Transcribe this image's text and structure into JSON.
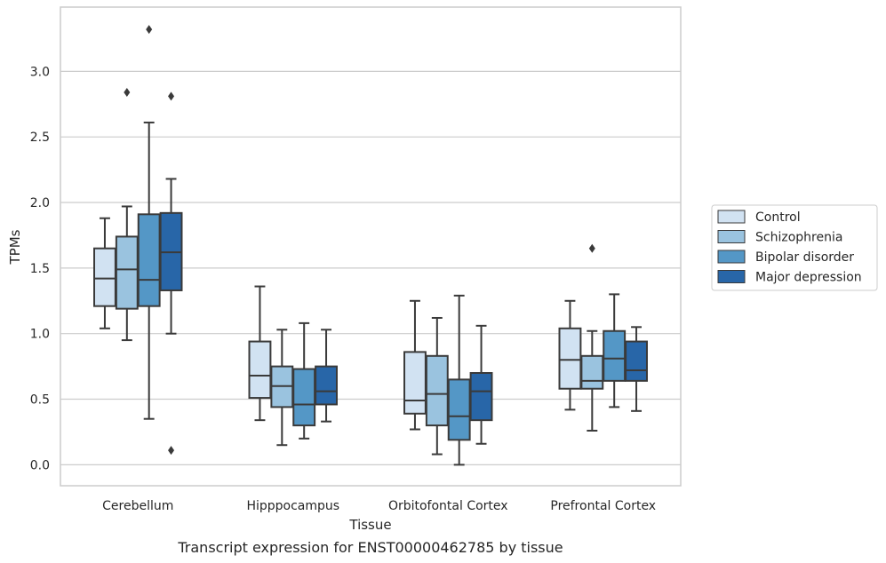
{
  "chart_data": {
    "type": "boxplot",
    "caption": "Transcript expression for ENST00000462785 by tissue",
    "xlabel": "Tissue",
    "ylabel": "TPMs",
    "ylim": [
      -0.16,
      3.49
    ],
    "yticks": [
      0.0,
      0.5,
      1.0,
      1.5,
      2.0,
      2.5,
      3.0
    ],
    "ytick_labels": [
      "0.0",
      "0.5",
      "1.0",
      "1.5",
      "2.0",
      "2.5",
      "3.0"
    ],
    "grid": "horizontal",
    "legend_position": "right",
    "categories": [
      "Cerebellum",
      "Hipppocampus",
      "Orbitofontal Cortex",
      "Prefrontal Cortex"
    ],
    "series": [
      {
        "name": "Control",
        "color": "#d1e2f2",
        "boxes": [
          {
            "whislo": 1.04,
            "q1": 1.21,
            "med": 1.42,
            "q3": 1.65,
            "whishi": 1.88,
            "fliers": []
          },
          {
            "whislo": 0.34,
            "q1": 0.51,
            "med": 0.68,
            "q3": 0.94,
            "whishi": 1.36,
            "fliers": []
          },
          {
            "whislo": 0.27,
            "q1": 0.39,
            "med": 0.49,
            "q3": 0.86,
            "whishi": 1.25,
            "fliers": []
          },
          {
            "whislo": 0.42,
            "q1": 0.58,
            "med": 0.8,
            "q3": 1.04,
            "whishi": 1.25,
            "fliers": []
          }
        ]
      },
      {
        "name": "Schizophrenia",
        "color": "#9ac3df",
        "boxes": [
          {
            "whislo": 0.95,
            "q1": 1.19,
            "med": 1.49,
            "q3": 1.74,
            "whishi": 1.97,
            "fliers": [
              2.84
            ]
          },
          {
            "whislo": 0.15,
            "q1": 0.44,
            "med": 0.6,
            "q3": 0.75,
            "whishi": 1.03,
            "fliers": []
          },
          {
            "whislo": 0.08,
            "q1": 0.3,
            "med": 0.54,
            "q3": 0.83,
            "whishi": 1.12,
            "fliers": []
          },
          {
            "whislo": 0.26,
            "q1": 0.58,
            "med": 0.64,
            "q3": 0.83,
            "whishi": 1.02,
            "fliers": [
              1.65
            ]
          }
        ]
      },
      {
        "name": "Bipolar disorder",
        "color": "#5497c6",
        "boxes": [
          {
            "whislo": 0.35,
            "q1": 1.21,
            "med": 1.41,
            "q3": 1.91,
            "whishi": 2.61,
            "fliers": [
              3.32
            ]
          },
          {
            "whislo": 0.2,
            "q1": 0.3,
            "med": 0.46,
            "q3": 0.73,
            "whishi": 1.08,
            "fliers": []
          },
          {
            "whislo": 0.0,
            "q1": 0.19,
            "med": 0.37,
            "q3": 0.65,
            "whishi": 1.29,
            "fliers": []
          },
          {
            "whislo": 0.44,
            "q1": 0.64,
            "med": 0.81,
            "q3": 1.02,
            "whishi": 1.3,
            "fliers": []
          }
        ]
      },
      {
        "name": "Major depression",
        "color": "#2866a8",
        "boxes": [
          {
            "whislo": 1.0,
            "q1": 1.33,
            "med": 1.62,
            "q3": 1.92,
            "whishi": 2.18,
            "fliers": [
              2.81,
              0.11
            ]
          },
          {
            "whislo": 0.33,
            "q1": 0.46,
            "med": 0.56,
            "q3": 0.75,
            "whishi": 1.03,
            "fliers": []
          },
          {
            "whislo": 0.16,
            "q1": 0.34,
            "med": 0.56,
            "q3": 0.7,
            "whishi": 1.06,
            "fliers": []
          },
          {
            "whislo": 0.41,
            "q1": 0.64,
            "med": 0.72,
            "q3": 0.94,
            "whishi": 1.05,
            "fliers": []
          }
        ]
      }
    ]
  }
}
